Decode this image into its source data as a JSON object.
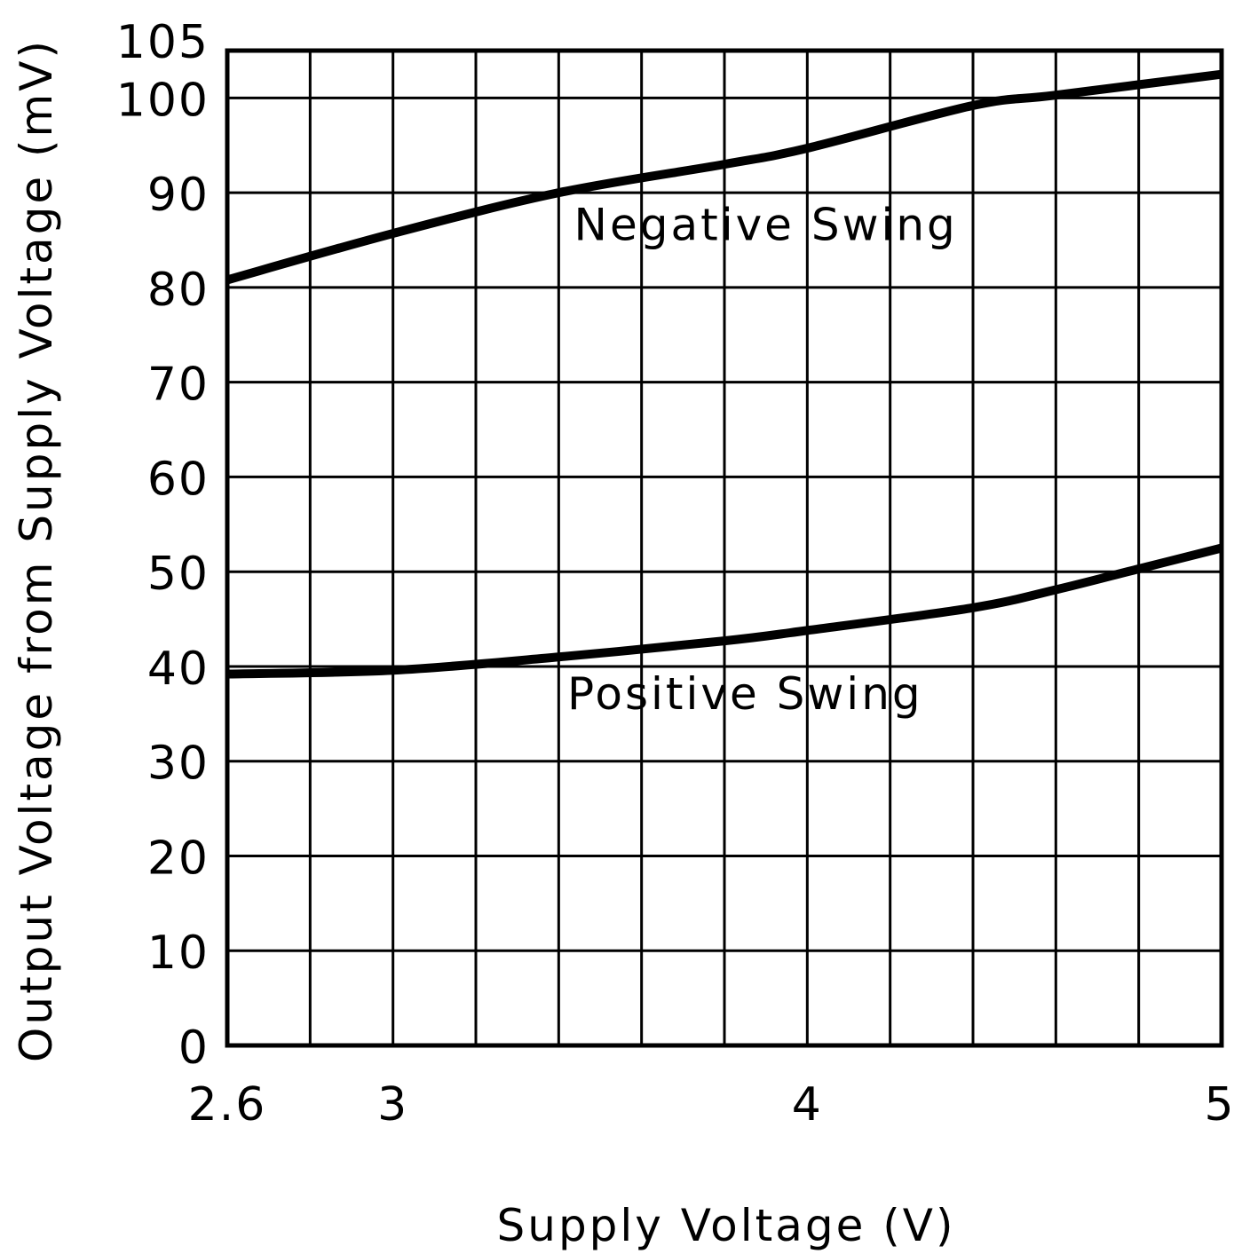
{
  "chart_data": {
    "type": "line",
    "title": "",
    "xlabel": "Supply Voltage (V)",
    "ylabel": "Output Voltage from Supply Voltage (mV)",
    "xlim": [
      2.6,
      5
    ],
    "ylim": [
      0,
      105
    ],
    "x_ticks": [
      2.6,
      3,
      4,
      5
    ],
    "x_tick_labels": [
      "2.6",
      "3",
      "4",
      "5"
    ],
    "x_grid_step": 0.2,
    "y_ticks": [
      0,
      10,
      20,
      30,
      40,
      50,
      60,
      70,
      80,
      90,
      100,
      105
    ],
    "y_tick_labels": [
      "0",
      "10",
      "20",
      "30",
      "40",
      "50",
      "60",
      "70",
      "80",
      "90",
      "100",
      "105"
    ],
    "grid": true,
    "colors": {
      "line": "#000000",
      "grid": "#000000",
      "background": "#ffffff"
    },
    "series": [
      {
        "name": "Negative Swing",
        "x": [
          2.6,
          3.0,
          3.4,
          3.8,
          4.0,
          4.4,
          4.6,
          5.0
        ],
        "y": [
          80.8,
          85.7,
          90.0,
          93.0,
          94.7,
          99.2,
          100.3,
          102.5
        ]
      },
      {
        "name": "Positive Swing",
        "x": [
          2.6,
          3.0,
          3.4,
          3.8,
          4.0,
          4.4,
          4.6,
          4.8,
          5.0
        ],
        "y": [
          39.2,
          39.6,
          41.0,
          42.7,
          43.8,
          46.2,
          48.1,
          50.3,
          52.5
        ]
      }
    ],
    "annotations": [
      {
        "text": "Negative Swing",
        "x": 3.9,
        "y": 85
      },
      {
        "text": "Positive Swing",
        "x": 3.85,
        "y": 35.5
      }
    ]
  }
}
